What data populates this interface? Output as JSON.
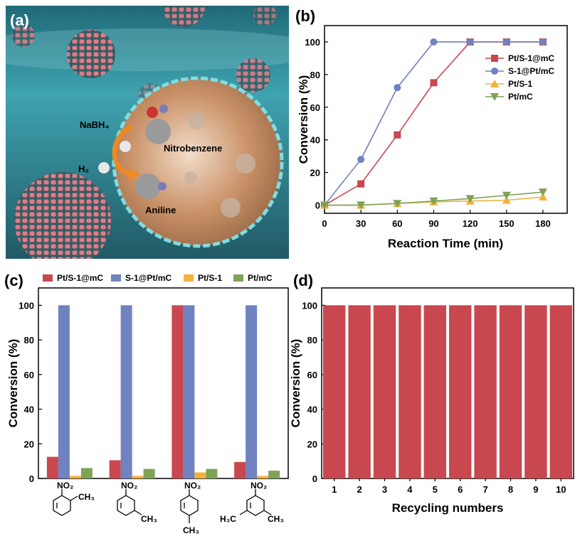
{
  "panels": {
    "a": {
      "label": "(a)",
      "texts": {
        "nabh4": "NaBH₄",
        "h2": "H₂",
        "nitrobenzene": "Nitrobenzene",
        "aniline": "Aniline"
      }
    },
    "b": {
      "label": "(b)"
    },
    "c": {
      "label": "(c)",
      "substituents": [
        {
          "top": "NO₂",
          "sub1": "CH₃",
          "sub2": ""
        },
        {
          "top": "NO₂",
          "sub1": "CH₃",
          "sub2": ""
        },
        {
          "top": "NO₂",
          "sub1": "CH₃",
          "sub2": ""
        },
        {
          "top": "NO₂",
          "sub1": "CH₃",
          "sub2": "H₃C"
        }
      ]
    },
    "d": {
      "label": "(d)"
    }
  },
  "colors": {
    "PtS1mC": "#c9474f",
    "S1PtmC": "#7082c0",
    "PtS1": "#f2b23a",
    "PtmC": "#7ea256",
    "bar_d": "#c9474f"
  },
  "chart_data": [
    {
      "id": "b",
      "type": "line",
      "xlabel": "Reaction Time (min)",
      "ylabel": "Conversion (%)",
      "xlim": [
        0,
        200
      ],
      "ylim": [
        -5,
        110
      ],
      "xticks": [
        0,
        30,
        60,
        90,
        120,
        150,
        180
      ],
      "yticks": [
        0,
        20,
        40,
        60,
        80,
        100
      ],
      "legend_position": "top-right",
      "series": [
        {
          "name": "Pt/S-1@mC",
          "marker": "square",
          "color": "#c9474f",
          "x": [
            0,
            30,
            60,
            90,
            120,
            150,
            180
          ],
          "y": [
            0,
            13,
            43,
            75,
            100,
            100,
            100
          ]
        },
        {
          "name": "S-1@Pt/mC",
          "marker": "circle",
          "color": "#7082c0",
          "x": [
            0,
            30,
            60,
            90,
            120,
            150,
            180
          ],
          "y": [
            0,
            28,
            72,
            100,
            100,
            100,
            100
          ]
        },
        {
          "name": "Pt/S-1",
          "marker": "triangle-up",
          "color": "#f2b23a",
          "x": [
            0,
            30,
            60,
            90,
            120,
            150,
            180
          ],
          "y": [
            0,
            0,
            1,
            2,
            2.5,
            3,
            5
          ]
        },
        {
          "name": "Pt/mC",
          "marker": "triangle-down",
          "color": "#7ea256",
          "x": [
            0,
            30,
            60,
            90,
            120,
            150,
            180
          ],
          "y": [
            0,
            0,
            1,
            2.5,
            4,
            6,
            8
          ]
        }
      ]
    },
    {
      "id": "c",
      "type": "bar",
      "xlabel": "",
      "ylabel": "Conversion (%)",
      "ylim": [
        0,
        110
      ],
      "yticks": [
        0,
        20,
        40,
        60,
        80,
        100
      ],
      "categories": [
        "o-nitrotoluene",
        "m-nitrotoluene",
        "p-nitrotoluene",
        "3,5-dimethylnitrobenzene"
      ],
      "legend_position": "top",
      "series": [
        {
          "name": "Pt/S-1@mC",
          "color": "#c9474f",
          "values": [
            12.5,
            10.5,
            100,
            9.5
          ]
        },
        {
          "name": "S-1@Pt/mC",
          "color": "#7082c0",
          "values": [
            100,
            100,
            100,
            100
          ]
        },
        {
          "name": "Pt/S-1",
          "color": "#f2b23a",
          "values": [
            1.5,
            1.5,
            3.5,
            1.5
          ]
        },
        {
          "name": "Pt/mC",
          "color": "#7ea256",
          "values": [
            6,
            5.5,
            5.5,
            4.5
          ]
        }
      ]
    },
    {
      "id": "d",
      "type": "bar",
      "xlabel": "Recycling numbers",
      "ylabel": "Conversion (%)",
      "ylim": [
        0,
        110
      ],
      "yticks": [
        0,
        20,
        40,
        60,
        80,
        100
      ],
      "categories": [
        "1",
        "2",
        "3",
        "4",
        "5",
        "6",
        "7",
        "8",
        "9",
        "10"
      ],
      "values": [
        100,
        100,
        100,
        100,
        100,
        100,
        100,
        100,
        100,
        100
      ]
    }
  ]
}
